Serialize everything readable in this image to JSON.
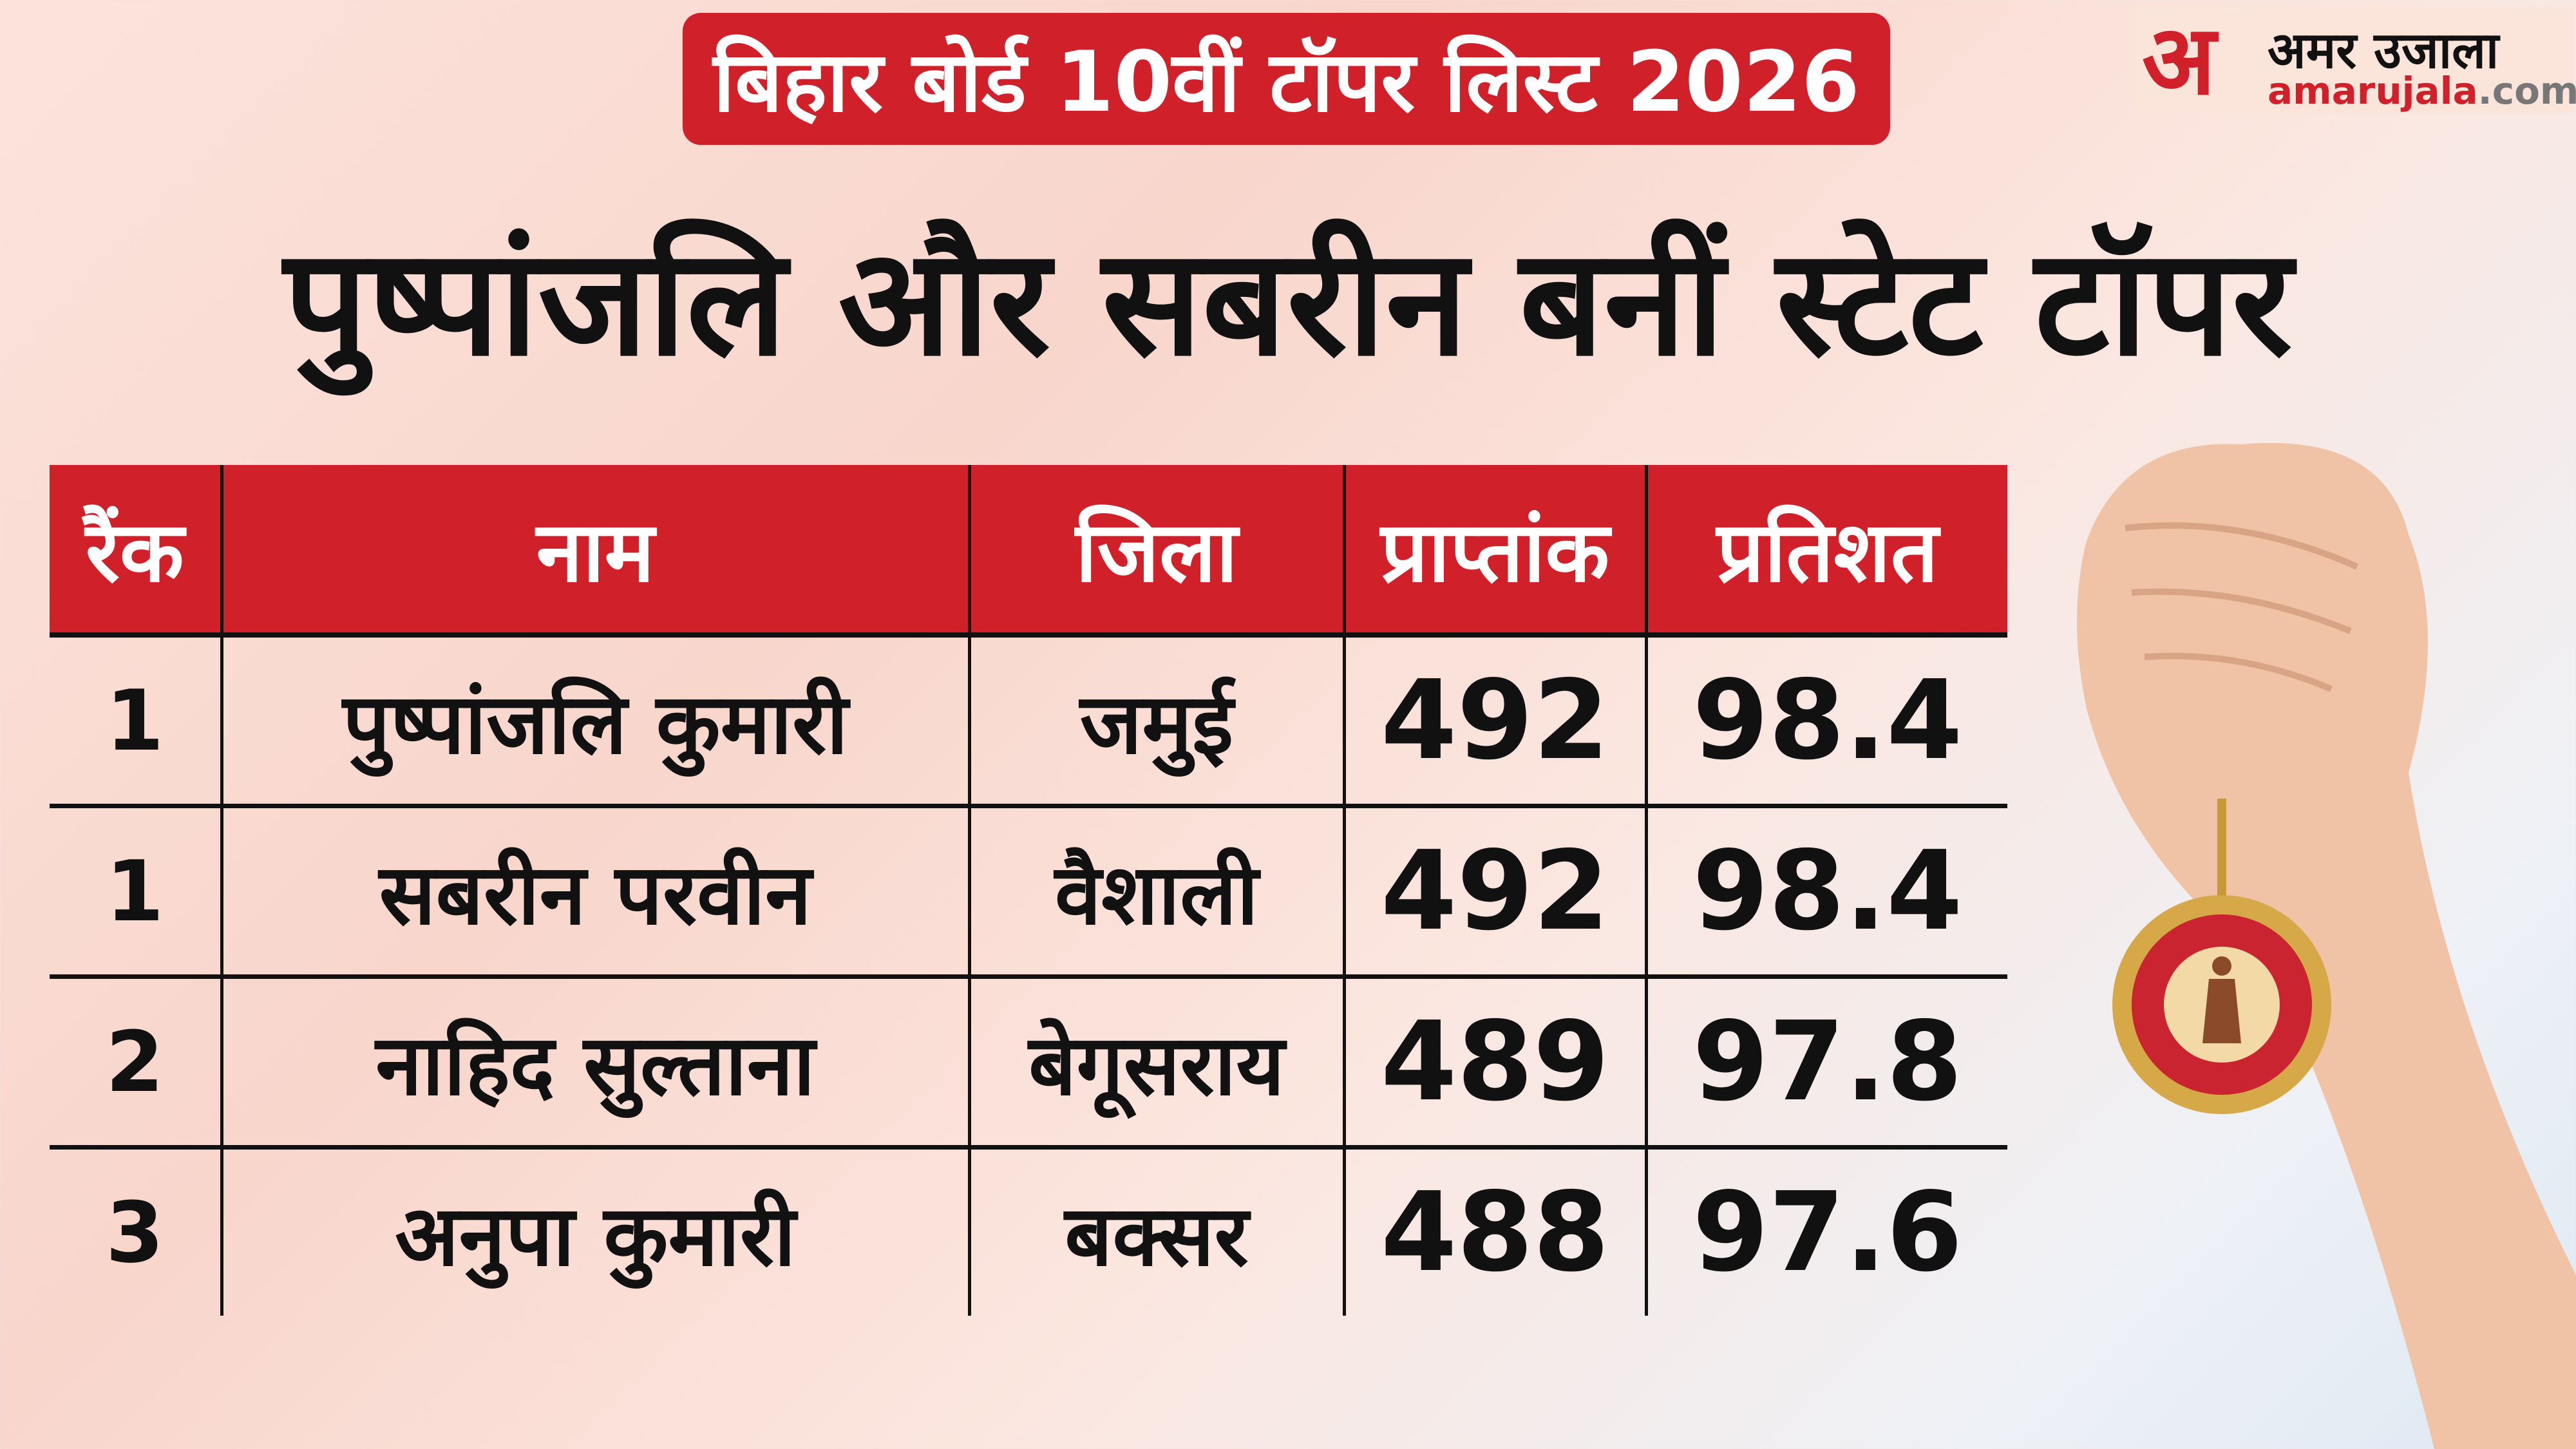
{
  "banner": "बिहार बोर्ड 10वीं टॉपर लिस्ट 2026",
  "headline": "पुष्पांजलि और सबरीन बनीं स्टेट टॉपर",
  "logo": {
    "devanagari_mark": "अ",
    "name_hindi": "अमर उजाला",
    "domain_main": "amarujala",
    "domain_tld": ".com"
  },
  "table": {
    "headers": [
      "रैंक",
      "नाम",
      "जिला",
      "प्राप्तांक",
      "प्रतिशत"
    ],
    "rows": [
      {
        "rank": "1",
        "name": "पुष्पांजलि कुमारी",
        "district": "जमुई",
        "marks": "492",
        "percent": "98.4"
      },
      {
        "rank": "1",
        "name": "सबरीन परवीन",
        "district": "वैशाली",
        "marks": "492",
        "percent": "98.4"
      },
      {
        "rank": "2",
        "name": "नाहिद सुल्ताना",
        "district": "बेगूसराय",
        "marks": "489",
        "percent": "97.8"
      },
      {
        "rank": "3",
        "name": "अनुपा कुमारी",
        "district": "बक्सर",
        "marks": "488",
        "percent": "97.6"
      }
    ]
  },
  "colors": {
    "accent": "#d0202a",
    "text": "#111111"
  }
}
